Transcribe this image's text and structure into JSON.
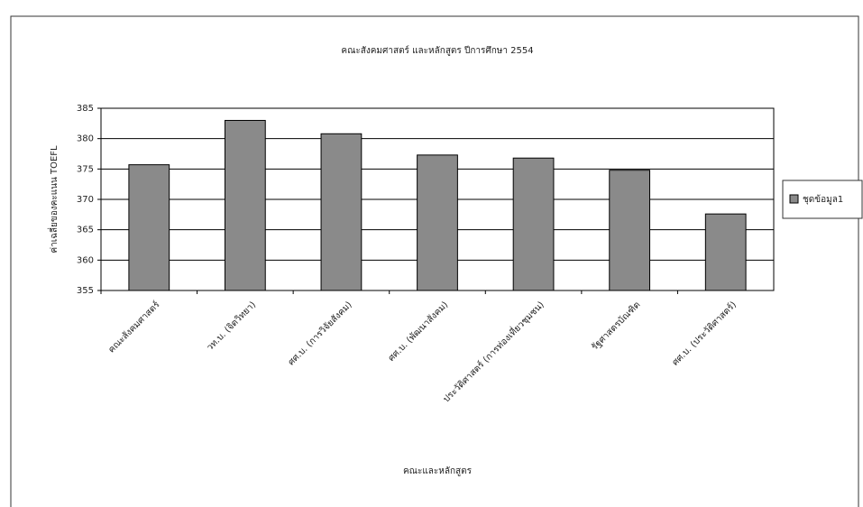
{
  "chart_data": {
    "type": "bar",
    "title": "คณะสังคมศาสตร์ และหลักสูตร ปีการศึกษา 2554",
    "y_label": "ค่าเฉลี่ยของคะแนน TOEFL",
    "x_label": "คณะและหลักสูตร",
    "categories": [
      "คณะสังคมศาสตร์",
      "วท.บ. (จิตวิทยา)",
      "ศศ.บ. (การวิจัยสังคม)",
      "ศศ.บ. (พัฒนาสังคม)",
      "ประวัติศาสตร์ (การท่องเที่ยวชุมชน)",
      "รัฐศาสตรบัณฑิต",
      "ศศ.บ. (ประวัติศาสตร์)"
    ],
    "series": [
      {
        "name": "ชุดข้อมูล1",
        "color": "#8a8a8a",
        "values": [
          375.7,
          383,
          380.8,
          377.3,
          376.8,
          374.8,
          367.6
        ]
      }
    ],
    "ylim": [
      355,
      385
    ],
    "yticks": [
      355,
      360,
      365,
      370,
      375,
      380,
      385
    ],
    "grid": true,
    "legend": "right"
  }
}
